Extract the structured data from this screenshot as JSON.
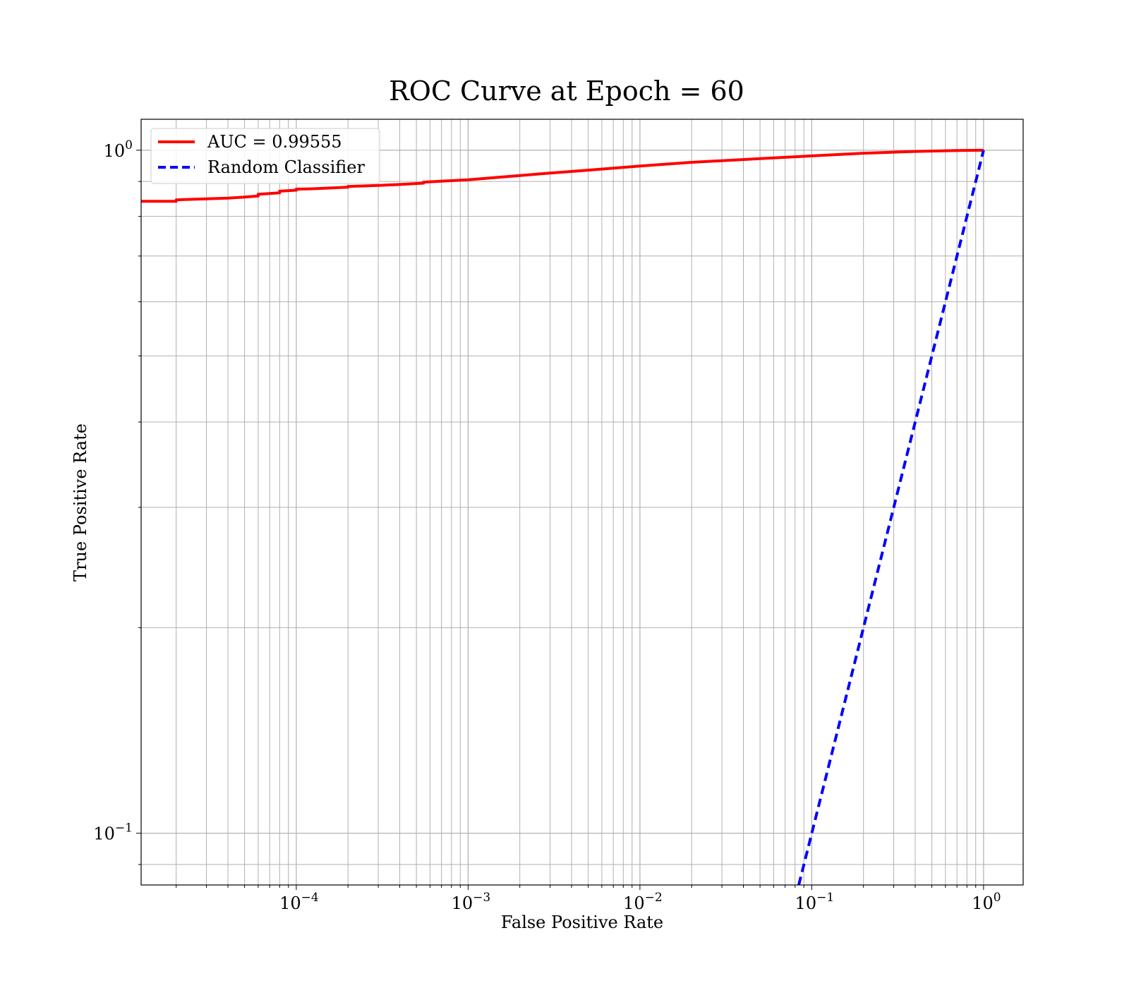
{
  "chart_data": {
    "type": "line",
    "title": "ROC Curve at Epoch = 60",
    "xlabel": "False Positive Rate",
    "ylabel": "True Positive Rate",
    "xscale": "log",
    "yscale": "log",
    "xlim": [
      1.25e-05,
      1.7
    ],
    "ylim": [
      0.084,
      1.11
    ],
    "grid": "on (major and minor)",
    "legend_placement": "top-left",
    "x_ticks": [
      {
        "value": 0.0001,
        "base": "10",
        "exp": "−4"
      },
      {
        "value": 0.001,
        "base": "10",
        "exp": "−3"
      },
      {
        "value": 0.01,
        "base": "10",
        "exp": "−2"
      },
      {
        "value": 0.1,
        "base": "10",
        "exp": "−1"
      },
      {
        "value": 1,
        "base": "10",
        "exp": "0"
      }
    ],
    "y_ticks": [
      {
        "value": 0.1,
        "base": "10",
        "exp": "−1"
      },
      {
        "value": 1,
        "base": "10",
        "exp": "0"
      }
    ],
    "series": [
      {
        "name": "AUC = 0.99555",
        "color": "#ff0000",
        "style": "solid",
        "x": [
          1.25e-05,
          2e-05,
          2e-05,
          3e-05,
          4e-05,
          5e-05,
          6e-05,
          6e-05,
          8e-05,
          8e-05,
          0.0001,
          0.0001,
          0.00012,
          0.00015,
          0.0002,
          0.0002,
          0.0003,
          0.0004,
          0.00055,
          0.00055,
          0.0007,
          0.001,
          0.002,
          0.003,
          0.005,
          0.01,
          0.02,
          0.05,
          0.1,
          0.2,
          0.4,
          0.7,
          1.0
        ],
        "y": [
          0.842,
          0.842,
          0.846,
          0.849,
          0.851,
          0.854,
          0.857,
          0.862,
          0.866,
          0.871,
          0.874,
          0.877,
          0.878,
          0.88,
          0.883,
          0.885,
          0.888,
          0.891,
          0.895,
          0.898,
          0.901,
          0.905,
          0.918,
          0.926,
          0.935,
          0.948,
          0.96,
          0.972,
          0.981,
          0.99,
          0.996,
          0.999,
          1.0
        ]
      },
      {
        "name": "Random Classifier",
        "color": "#0000ff",
        "style": "dashed",
        "x": [
          0.084,
          1.0
        ],
        "y": [
          0.084,
          1.0
        ]
      }
    ]
  }
}
